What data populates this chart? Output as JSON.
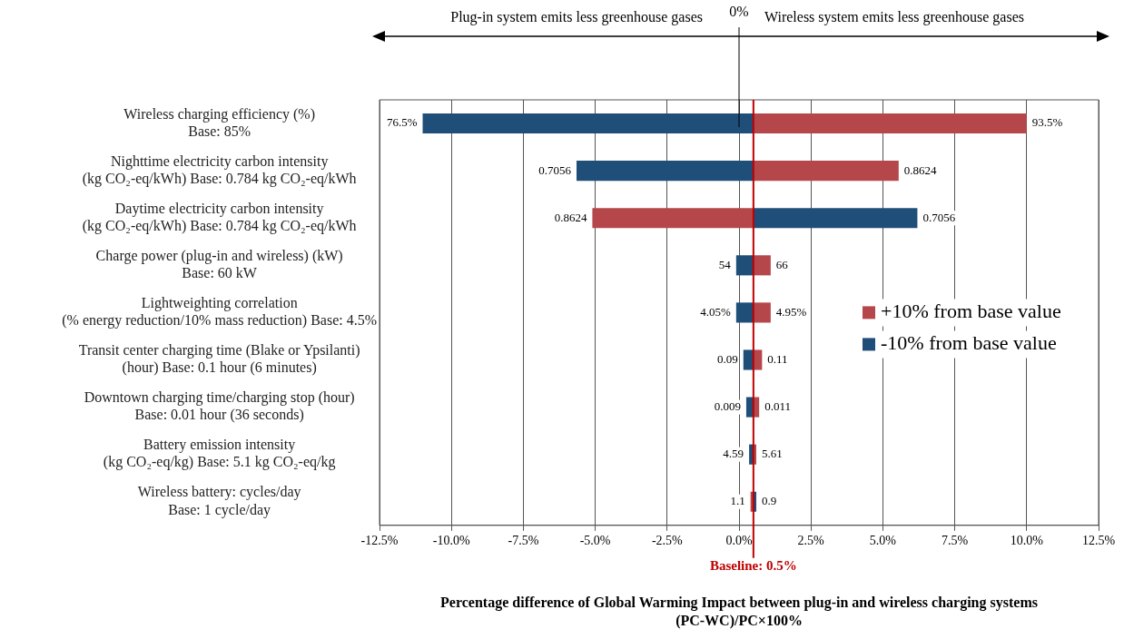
{
  "chart_data": {
    "type": "bar",
    "orientation": "horizontal",
    "categories": [
      "Wireless charging efficiency (%)\nBase: 85%",
      "Nighttime electricity carbon intensity\n(kg CO₂-eq/kWh) Base: 0.784 kg CO₂-eq/kWh",
      "Daytime electricity carbon intensity\n(kg CO₂-eq/kWh) Base: 0.784 kg CO₂-eq/kWh",
      "Charge power (plug-in and wireless) (kW)\nBase: 60 kW",
      "Lightweighting correlation\n(% energy reduction/10% mass reduction) Base: 4.5%",
      "Transit center charging time (Blake or Ypsilanti)\n(hour) Base: 0.1 hour (6 minutes)",
      "Downtown charging time/charging stop (hour)\nBase: 0.01 hour (36 seconds)",
      "Battery emission intensity\n(kg CO₂-eq/kg) Base: 5.1 kg CO₂-eq/kg",
      "Wireless battery: cycles/day\nBase: 1 cycle/day"
    ],
    "series": [
      {
        "name": "+10% from base value",
        "color": "#b5474b",
        "base": [
          0.5,
          0.5,
          0.5,
          0.5,
          0.5,
          0.5,
          0.5,
          0.5,
          0.5
        ],
        "values": [
          9.5,
          5.05,
          -5.6,
          0.6,
          0.6,
          0.3,
          0.2,
          0.1,
          -0.1
        ]
      },
      {
        "name": "-10% from base value",
        "color": "#1f4e79",
        "base": [
          0.5,
          0.5,
          0.5,
          0.5,
          0.5,
          0.5,
          0.5,
          0.5,
          0.5
        ],
        "values": [
          -11.5,
          -6.15,
          5.7,
          -0.6,
          -0.6,
          -0.35,
          -0.25,
          -0.15,
          0.1
        ]
      }
    ],
    "xlim": [
      -12.5,
      12.5
    ],
    "xticks": [
      {
        "value": -12.5,
        "label": "-12.5%"
      },
      {
        "value": -10,
        "label": "-10.0%"
      },
      {
        "value": -7.5,
        "label": "-7.5%"
      },
      {
        "value": -5,
        "label": "-5.0%"
      },
      {
        "value": -2.5,
        "label": "-2.5%"
      },
      {
        "value": 0,
        "label": "0.0%"
      },
      {
        "value": 2.5,
        "label": "2.5%"
      },
      {
        "value": 5,
        "label": "5.0%"
      },
      {
        "value": 7.5,
        "label": "7.5%"
      },
      {
        "value": 10,
        "label": "10.0%"
      },
      {
        "value": 12.5,
        "label": "12.5%"
      }
    ],
    "xlabel": "Percentage difference of Global Warming Impact between plug-in and wireless charging systems\n(PC-WC)/PC×100%",
    "grid": "x",
    "legend": "right",
    "ref_lines": [
      {
        "axis": "x",
        "value": 0.5,
        "label": "Baseline: 0.5%",
        "color": "#c00000"
      }
    ],
    "annotations": [
      "Plug-in system emits less greenhouse gases",
      "Wireless system emits less greenhouse gases",
      "0%",
      {
        "text": "93.5%",
        "x": 10,
        "y": "Wireless charging efficiency (%)\nBase: 85%"
      },
      {
        "text": "76.5%",
        "x": -11,
        "y": "Wireless charging efficiency (%)\nBase: 85%"
      },
      {
        "text": "0.8624",
        "x": 5.55,
        "y": "Nighttime electricity carbon intensity\n(kg CO₂-eq/kWh) Base: 0.784 kg CO₂-eq/kWh"
      },
      {
        "text": "0.7056",
        "x": -5.65,
        "y": "Nighttime electricity carbon intensity\n(kg CO₂-eq/kWh) Base: 0.784 kg CO₂-eq/kWh"
      },
      {
        "text": "0.8624",
        "x": -5.1,
        "y": "Daytime electricity carbon intensity\n(kg CO₂-eq/kWh) Base: 0.784 kg CO₂-eq/kWh"
      },
      {
        "text": "0.7056",
        "x": 6.2,
        "y": "Daytime electricity carbon intensity\n(kg CO₂-eq/kWh) Base: 0.784 kg CO₂-eq/kWh"
      },
      {
        "text": "66",
        "x": 1.1,
        "y": "Charge power (plug-in and wireless) (kW)\nBase: 60 kW"
      },
      {
        "text": "54",
        "x": -0.1,
        "y": "Charge power (plug-in and wireless) (kW)\nBase: 60 kW"
      },
      {
        "text": "4.95%",
        "x": 1.1,
        "y": "Lightweighting correlation\n(% energy reduction/10% mass reduction) Base: 4.5%"
      },
      {
        "text": "4.05%",
        "x": -0.1,
        "y": "Lightweighting correlation\n(% energy reduction/10% mass reduction) Base: 4.5%"
      },
      {
        "text": "0.11",
        "x": 0.8,
        "y": "Transit center charging time (Blake or Ypsilanti)\n(hour) Base: 0.1 hour (6 minutes)"
      },
      {
        "text": "0.09",
        "x": 0.15,
        "y": "Transit center charging time (Blake or Ypsilanti)\n(hour) Base: 0.1 hour (6 minutes)"
      },
      {
        "text": "0.011",
        "x": 0.7,
        "y": "Downtown charging time/charging stop (hour)\nBase: 0.01 hour (36 seconds)"
      },
      {
        "text": "0.009",
        "x": 0.25,
        "y": "Downtown charging time/charging stop (hour)\nBase: 0.01 hour (36 seconds)"
      },
      {
        "text": "5.61",
        "x": 0.6,
        "y": "Battery emission intensity\n(kg CO₂-eq/kg) Base: 5.1 kg CO₂-eq/kg"
      },
      {
        "text": "4.59",
        "x": 0.35,
        "y": "Battery emission intensity\n(kg CO₂-eq/kg) Base: 5.1 kg CO₂-eq/kg"
      },
      {
        "text": "1.1",
        "x": 0.4,
        "y": "Wireless battery: cycles/day\nBase: 1 cycle/day"
      },
      {
        "text": "0.9",
        "x": 0.6,
        "y": "Wireless battery: cycles/day\nBase: 1 cycle/day"
      }
    ]
  }
}
